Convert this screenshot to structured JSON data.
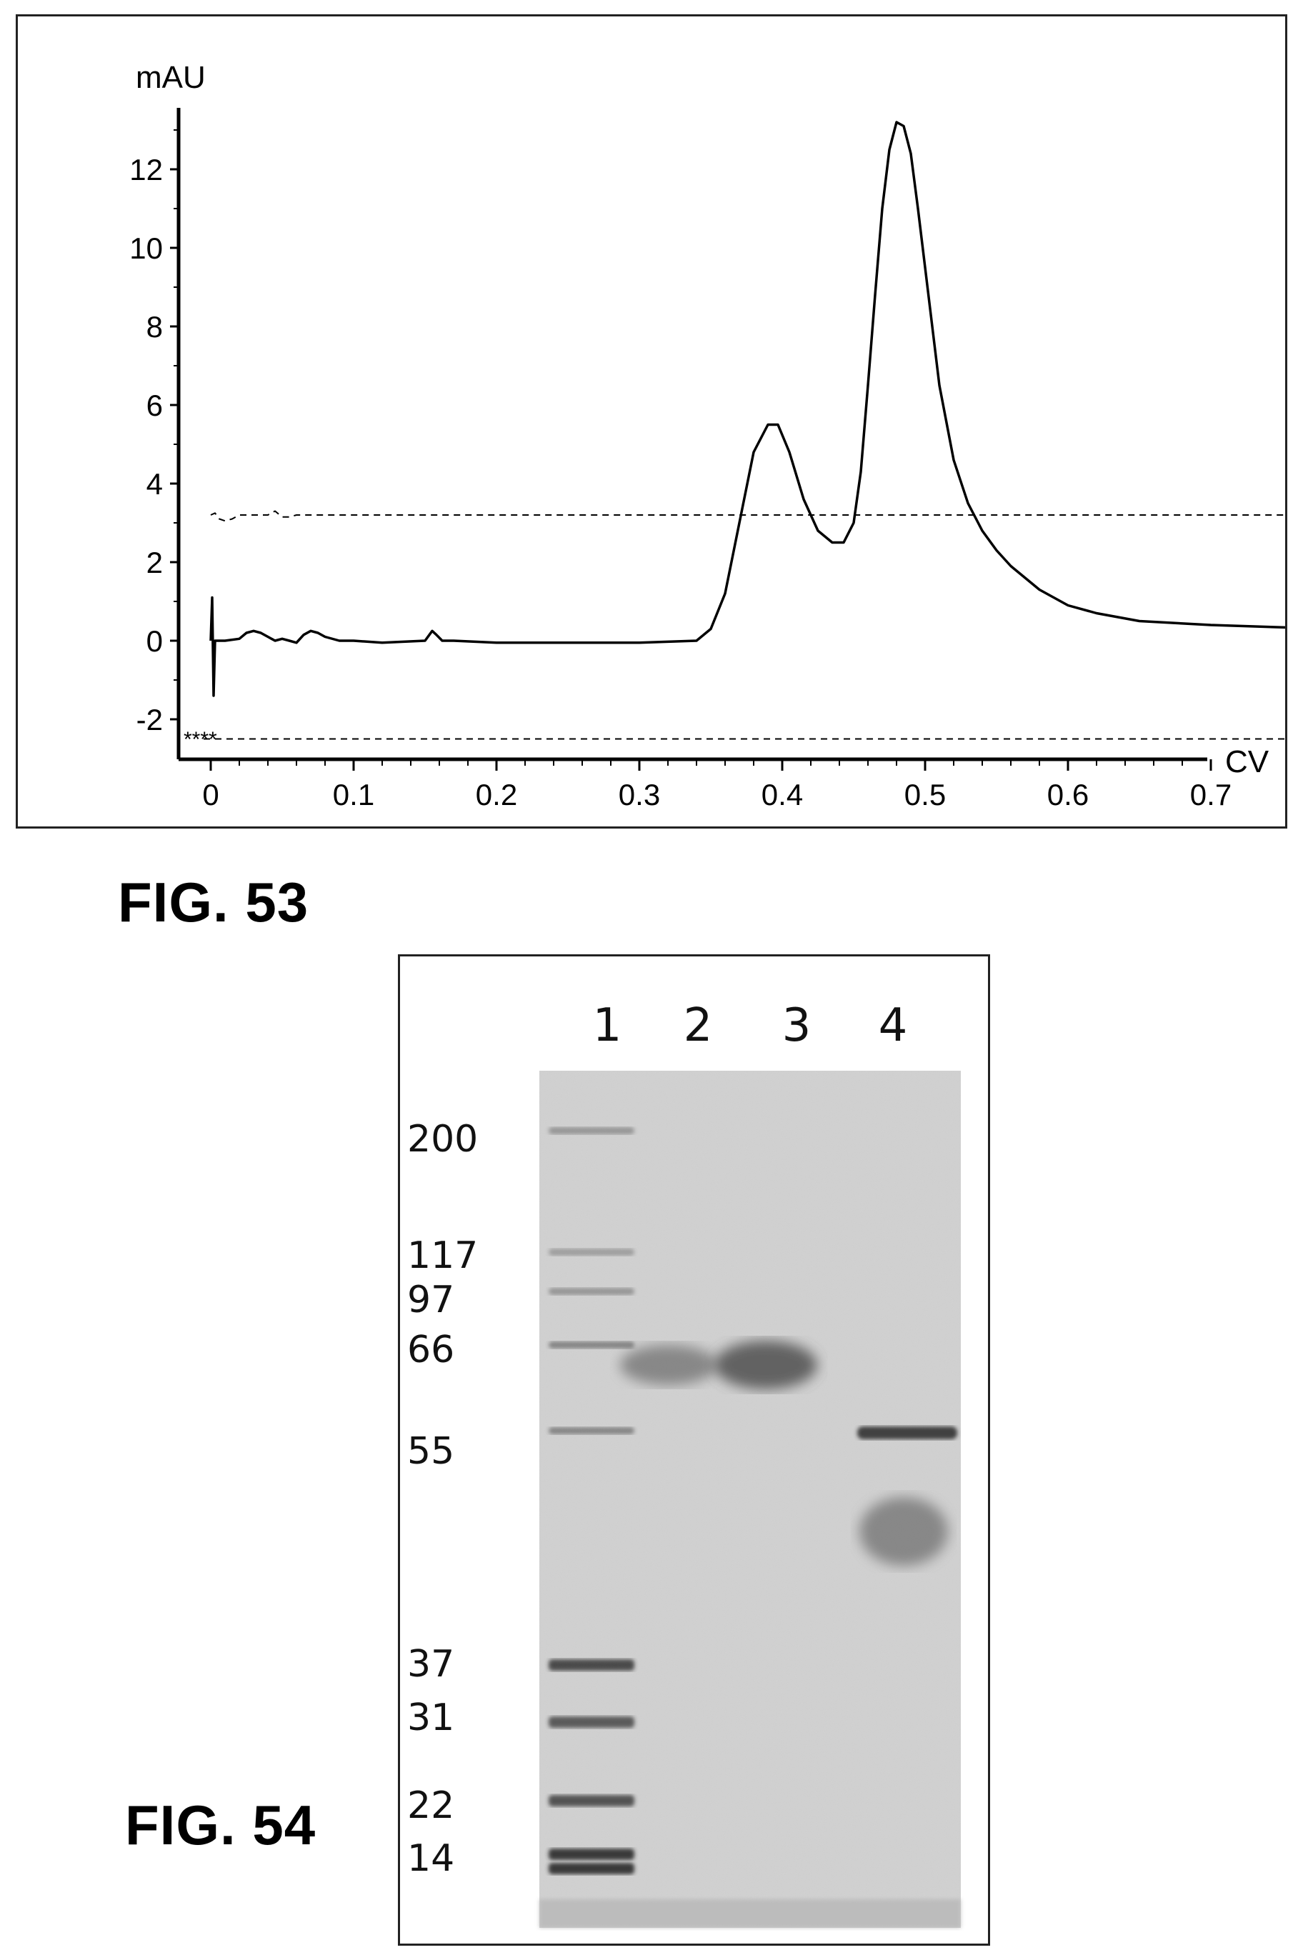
{
  "fig53": {
    "caption": "FIG. 53",
    "chart_data": {
      "type": "line",
      "ylabel": "mAU",
      "xlabel": "CV",
      "xlim": [
        -0.01,
        0.76
      ],
      "ylim": [
        -3,
        14
      ],
      "x_ticks": [
        "0",
        "0.1",
        "0.2",
        "0.3",
        "0.4",
        "0.5",
        "0.6",
        "0.7"
      ],
      "y_ticks": [
        "-2",
        "0",
        "2",
        "4",
        "6",
        "8",
        "10",
        "12"
      ],
      "annotation": "****",
      "series": [
        {
          "style": "solid",
          "x": [
            0.0,
            0.001,
            0.002,
            0.003,
            0.004,
            0.01,
            0.02,
            0.025,
            0.03,
            0.035,
            0.04,
            0.045,
            0.05,
            0.055,
            0.06,
            0.065,
            0.07,
            0.075,
            0.08,
            0.09,
            0.1,
            0.12,
            0.15,
            0.155,
            0.158,
            0.162,
            0.17,
            0.2,
            0.25,
            0.3,
            0.34,
            0.35,
            0.36,
            0.37,
            0.38,
            0.39,
            0.397,
            0.405,
            0.415,
            0.425,
            0.435,
            0.443,
            0.45,
            0.455,
            0.46,
            0.465,
            0.47,
            0.475,
            0.48,
            0.485,
            0.49,
            0.495,
            0.5,
            0.51,
            0.52,
            0.53,
            0.54,
            0.55,
            0.56,
            0.58,
            0.6,
            0.62,
            0.65,
            0.7,
            0.76
          ],
          "y": [
            0.0,
            1.1,
            -1.4,
            0.0,
            0.0,
            0.0,
            0.05,
            0.2,
            0.25,
            0.2,
            0.1,
            0.0,
            0.05,
            0.0,
            -0.05,
            0.15,
            0.25,
            0.2,
            0.1,
            0.0,
            0.0,
            -0.05,
            0.0,
            0.25,
            0.15,
            0.0,
            0.0,
            -0.05,
            -0.05,
            -0.05,
            0.0,
            0.3,
            1.2,
            3.0,
            4.8,
            5.5,
            5.5,
            4.8,
            3.6,
            2.8,
            2.5,
            2.5,
            3.0,
            4.3,
            6.5,
            8.8,
            11.0,
            12.5,
            13.2,
            13.1,
            12.4,
            11.0,
            9.5,
            6.5,
            4.6,
            3.5,
            2.8,
            2.3,
            1.9,
            1.3,
            0.9,
            0.7,
            0.5,
            0.4,
            0.33
          ]
        },
        {
          "style": "dashed",
          "x": [
            0.0,
            0.003,
            0.006,
            0.01,
            0.015,
            0.02,
            0.04,
            0.045,
            0.05,
            0.055,
            0.06,
            0.1,
            0.76
          ],
          "y": [
            3.2,
            3.25,
            3.1,
            3.05,
            3.1,
            3.2,
            3.2,
            3.3,
            3.15,
            3.15,
            3.2,
            3.2,
            3.2
          ]
        },
        {
          "style": "dashed",
          "x": [
            -0.005,
            0.76
          ],
          "y": [
            -2.5,
            -2.5
          ]
        }
      ]
    }
  },
  "fig54": {
    "caption": "FIG. 54",
    "lanes": [
      "1",
      "2",
      "3",
      "4"
    ],
    "mw_markers": [
      "200",
      "117",
      "97",
      "66",
      "55",
      "37",
      "31",
      "22",
      "14"
    ]
  }
}
